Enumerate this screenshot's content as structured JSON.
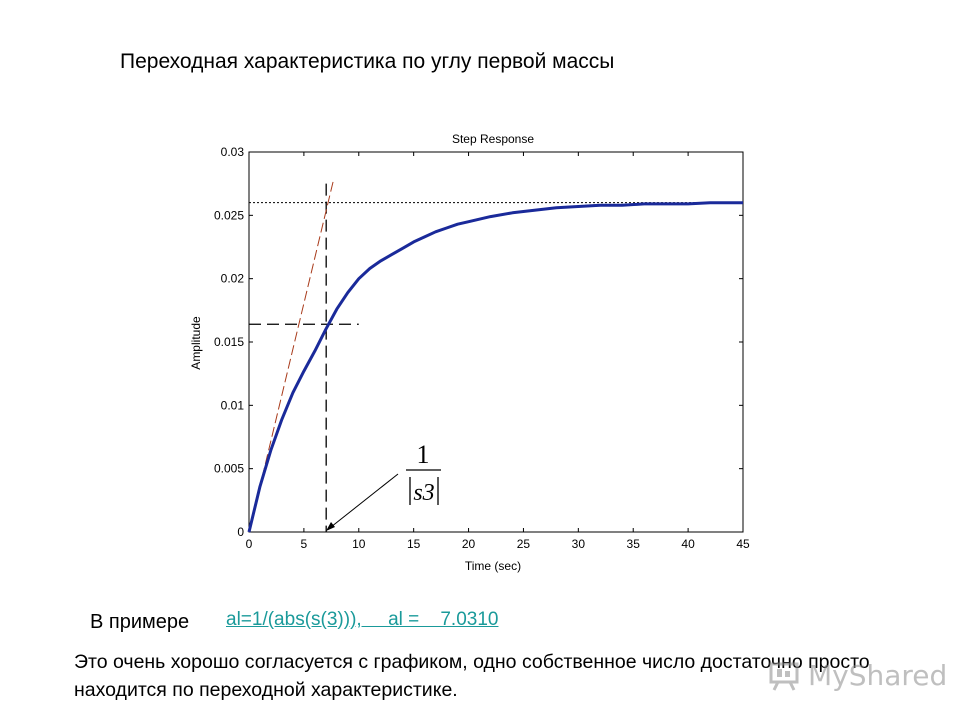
{
  "slide": {
    "title": "Переходная характеристика по углу первой массы",
    "example_label": "В примере",
    "example_link": "al=1/(abs(s(3))),     al =    7.0310",
    "conclusion": "Это очень хорошо согласуется с графиком, одно собственное число достаточно просто находится по переходной характеристике.",
    "watermark_text": "MyShared",
    "watermark_icon": "presentation-board-icon"
  },
  "chart_data": {
    "type": "line",
    "title": "Step Response",
    "xlabel": "Time (sec)",
    "ylabel": "Amplitude",
    "xlim": [
      0,
      45
    ],
    "ylim": [
      0,
      0.03
    ],
    "xticks": [
      0,
      5,
      10,
      15,
      20,
      25,
      30,
      35,
      40,
      45
    ],
    "xtick_labels": [
      "0",
      "5",
      "10",
      "15",
      "20",
      "25",
      "30",
      "35",
      "40",
      "45"
    ],
    "yticks": [
      0,
      0.005,
      0.01,
      0.015,
      0.02,
      0.025,
      0.03
    ],
    "ytick_labels": [
      "0",
      "0.005",
      "0.01",
      "0.015",
      "0.02",
      "0.025",
      "0.03"
    ],
    "grid": false,
    "colors": {
      "response": "#1a2a9a",
      "tangent": "#a83a1a",
      "guide": "#000000"
    },
    "series": [
      {
        "x": [
          0,
          1,
          2,
          3,
          4,
          5,
          6,
          7,
          8,
          9,
          10,
          11,
          12,
          13,
          14,
          15,
          16,
          17,
          18,
          19,
          20,
          22,
          24,
          26,
          28,
          30,
          32,
          34,
          36,
          38,
          40,
          42,
          44,
          45
        ],
        "y": [
          0,
          0.0036,
          0.0065,
          0.0089,
          0.011,
          0.0127,
          0.0143,
          0.016,
          0.0176,
          0.0189,
          0.02,
          0.0208,
          0.0214,
          0.0219,
          0.0224,
          0.0229,
          0.0233,
          0.0237,
          0.024,
          0.0243,
          0.0245,
          0.0249,
          0.0252,
          0.0254,
          0.0256,
          0.0257,
          0.0258,
          0.0258,
          0.0259,
          0.0259,
          0.0259,
          0.026,
          0.026,
          0.026
        ]
      }
    ],
    "annotations": {
      "steady_state": 0.026,
      "time_constant": 7.031,
      "level_at_time_constant": 0.0164,
      "tangent": [
        [
          0,
          0
        ],
        [
          7.7,
          0.0278
        ]
      ],
      "formula_numerator": "1",
      "formula_denominator": "s3"
    }
  }
}
